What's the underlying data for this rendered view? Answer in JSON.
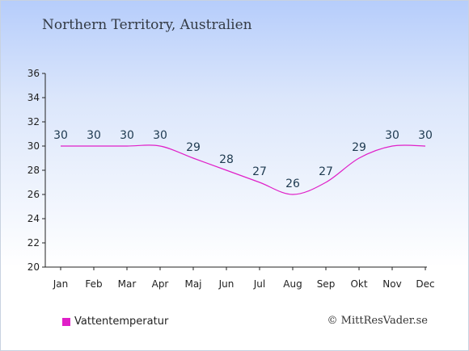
{
  "chart_data": {
    "type": "line",
    "title": "Northern Territory, Australien",
    "categories": [
      "Jan",
      "Feb",
      "Mar",
      "Apr",
      "Maj",
      "Jun",
      "Jul",
      "Aug",
      "Sep",
      "Okt",
      "Nov",
      "Dec"
    ],
    "series": [
      {
        "name": "Vattentemperatur",
        "values": [
          30,
          30,
          30,
          30,
          29,
          28,
          27,
          26,
          27,
          29,
          30,
          30
        ],
        "color": "#e020c8"
      }
    ],
    "ylim": [
      20,
      36
    ],
    "yticks": [
      20,
      22,
      24,
      26,
      28,
      30,
      32,
      34,
      36
    ],
    "grid": false,
    "legend": "bottom-left"
  },
  "credit": "© MittResVader.se"
}
